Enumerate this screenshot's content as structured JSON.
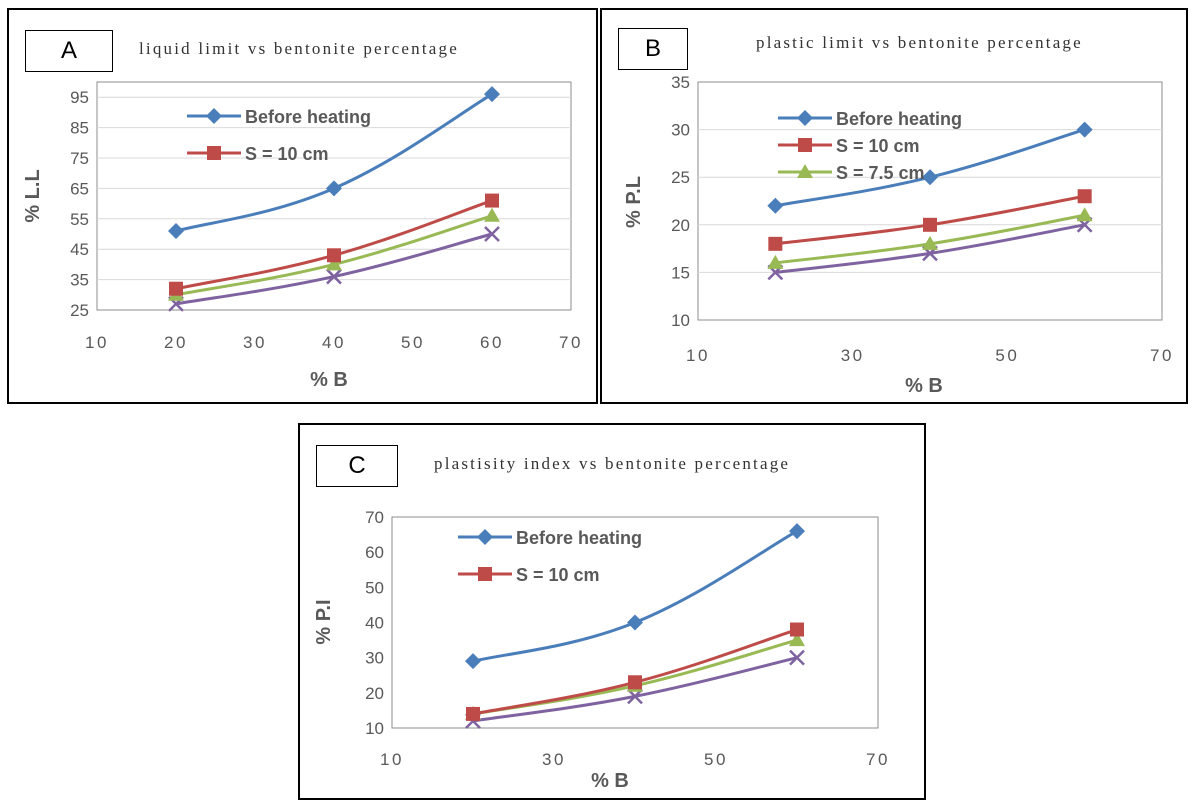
{
  "colors": {
    "before_heating": "#4A7EBB",
    "s10": "#BE4B48",
    "s75": "#98B954",
    "fourth": "#7E63A0",
    "gridline": "#D9D9D9",
    "text": "#595959"
  },
  "chart_data": [
    {
      "panel_label": "A",
      "type": "line",
      "title": "liquid limit vs bentonite percentage",
      "xlabel": "% B",
      "ylabel": "% L.L",
      "xlim": [
        10,
        70
      ],
      "ylim": [
        25,
        100
      ],
      "x_ticks": [
        "10",
        "20",
        "30",
        "40",
        "50",
        "60",
        "70"
      ],
      "y_ticks": [
        "25",
        "35",
        "45",
        "55",
        "65",
        "75",
        "85",
        "95"
      ],
      "grid": true,
      "legend_position": "top-left",
      "series": [
        {
          "name": "Before heating",
          "marker": "diamond",
          "x": [
            20,
            40,
            60
          ],
          "y": [
            51,
            65,
            96
          ]
        },
        {
          "name": "S = 10 cm",
          "marker": "square",
          "x": [
            20,
            40,
            60
          ],
          "y": [
            32,
            43,
            61
          ]
        },
        {
          "marker": "triangle",
          "x": [
            20,
            40,
            60
          ],
          "y": [
            30,
            40,
            56
          ]
        },
        {
          "marker": "x",
          "x": [
            20,
            40,
            60
          ],
          "y": [
            27,
            36,
            50
          ]
        }
      ]
    },
    {
      "panel_label": "B",
      "type": "line",
      "title": "plastic limit vs bentonite percentage",
      "xlabel": "% B",
      "ylabel": "% P.L",
      "xlim": [
        10,
        70
      ],
      "ylim": [
        10,
        35
      ],
      "x_ticks": [
        "10",
        "30",
        "50",
        "70"
      ],
      "y_ticks": [
        "10",
        "15",
        "20",
        "25",
        "30",
        "35"
      ],
      "grid": true,
      "legend_position": "top-left",
      "series": [
        {
          "name": "Before heating",
          "marker": "diamond",
          "x": [
            20,
            40,
            60
          ],
          "y": [
            22,
            25,
            30
          ]
        },
        {
          "name": "S = 10 cm",
          "marker": "square",
          "x": [
            20,
            40,
            60
          ],
          "y": [
            18,
            20,
            23
          ]
        },
        {
          "name": "S = 7.5 cm",
          "marker": "triangle",
          "x": [
            20,
            40,
            60
          ],
          "y": [
            16,
            18,
            21
          ]
        },
        {
          "marker": "x",
          "x": [
            20,
            40,
            60
          ],
          "y": [
            15,
            17,
            20
          ]
        }
      ]
    },
    {
      "panel_label": "C",
      "type": "line",
      "title": "plastisity index vs bentonite percentage",
      "xlabel": "% B",
      "ylabel": "% P.I",
      "xlim": [
        10,
        70
      ],
      "ylim": [
        10,
        70
      ],
      "x_ticks": [
        "10",
        "30",
        "50",
        "70"
      ],
      "y_ticks": [
        "10",
        "20",
        "30",
        "40",
        "50",
        "60",
        "70"
      ],
      "grid": false,
      "legend_position": "top-left",
      "series": [
        {
          "name": "Before heating",
          "marker": "diamond",
          "x": [
            20,
            40,
            60
          ],
          "y": [
            29,
            40,
            66
          ]
        },
        {
          "name": "S = 10 cm",
          "marker": "square",
          "x": [
            20,
            40,
            60
          ],
          "y": [
            14,
            23,
            38
          ]
        },
        {
          "marker": "triangle",
          "x": [
            20,
            40,
            60
          ],
          "y": [
            14,
            22,
            35
          ]
        },
        {
          "marker": "x",
          "x": [
            20,
            40,
            60
          ],
          "y": [
            12,
            19,
            30
          ]
        }
      ]
    }
  ]
}
